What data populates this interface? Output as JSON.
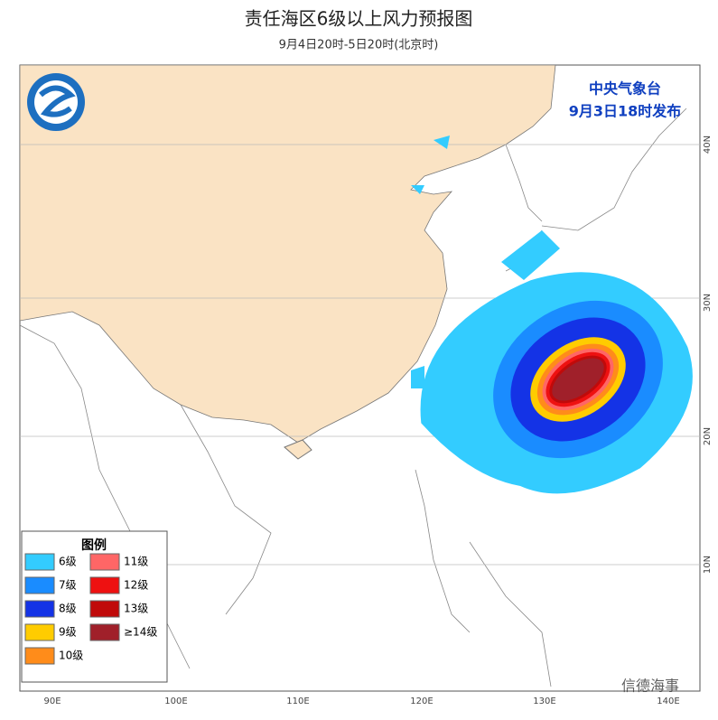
{
  "header": {
    "title": "责任海区6级以上风力预报图",
    "subtitle": "9月4日20时-5日20时(北京时)"
  },
  "issuer": {
    "agency": "中央气象台",
    "time": "9月3日18时发布"
  },
  "map": {
    "lon_labels": [
      "90E",
      "100E",
      "110E",
      "120E",
      "130E",
      "140E"
    ],
    "lat_labels": [
      "40N",
      "30N",
      "20N",
      "10N"
    ]
  },
  "legend": {
    "title": "图例",
    "items": [
      {
        "label": "6级",
        "color": "#33ccff"
      },
      {
        "label": "7级",
        "color": "#1a8cff"
      },
      {
        "label": "8级",
        "color": "#1433e6"
      },
      {
        "label": "9级",
        "color": "#ffcc00"
      },
      {
        "label": "10级",
        "color": "#ff8c1a"
      },
      {
        "label": "11级",
        "color": "#ff6666"
      },
      {
        "label": "12级",
        "color": "#ee1111"
      },
      {
        "label": "13级",
        "color": "#c00a0a"
      },
      {
        "label": "≥14级",
        "color": "#a0202a"
      }
    ]
  },
  "watermark": "信德海事"
}
